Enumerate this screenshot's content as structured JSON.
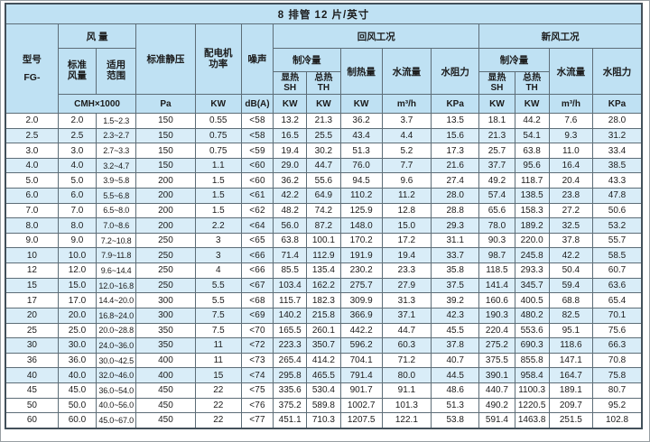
{
  "title": "8 排管  12 片/英寸",
  "header": {
    "model": [
      "型号",
      "FG-"
    ],
    "air_volume": "风 量",
    "std_air": [
      "标准",
      "风量"
    ],
    "range": [
      "适用",
      "范围"
    ],
    "static_pressure": "标准静压",
    "motor_power": [
      "配电机",
      "功率"
    ],
    "noise": "噪声",
    "return_air": "回风工况",
    "fresh_air": "新风工况",
    "cooling": "制冷量",
    "sensible": [
      "显热",
      "SH"
    ],
    "total": [
      "总热",
      "TH"
    ],
    "heating": "制热量",
    "water_flow": "水流量",
    "water_resistance": "水阻力"
  },
  "units": [
    "CMH×1000",
    "Pa",
    "KW",
    "dB(A)",
    "KW",
    "KW",
    "KW",
    "m³/h",
    "KPa",
    "KW",
    "KW",
    "m³/h",
    "KPa"
  ],
  "rows": [
    [
      "2.0",
      "2.0",
      "1.5~2.3",
      "150",
      "0.55",
      "<58",
      "13.2",
      "21.3",
      "36.2",
      "3.7",
      "13.5",
      "18.1",
      "44.2",
      "7.6",
      "28.0"
    ],
    [
      "2.5",
      "2.5",
      "2.3~2.7",
      "150",
      "0.75",
      "<58",
      "16.5",
      "25.5",
      "43.4",
      "4.4",
      "15.6",
      "21.3",
      "54.1",
      "9.3",
      "31.2"
    ],
    [
      "3.0",
      "3.0",
      "2.7~3.3",
      "150",
      "0.75",
      "<59",
      "19.4",
      "30.2",
      "51.3",
      "5.2",
      "17.3",
      "25.7",
      "63.8",
      "11.0",
      "33.4"
    ],
    [
      "4.0",
      "4.0",
      "3.2~4.7",
      "150",
      "1.1",
      "<60",
      "29.0",
      "44.7",
      "76.0",
      "7.7",
      "21.6",
      "37.7",
      "95.6",
      "16.4",
      "38.5"
    ],
    [
      "5.0",
      "5.0",
      "3.9~5.8",
      "200",
      "1.5",
      "<60",
      "36.2",
      "55.6",
      "94.5",
      "9.6",
      "27.4",
      "49.2",
      "118.7",
      "20.4",
      "43.3"
    ],
    [
      "6.0",
      "6.0",
      "5.5~6.8",
      "200",
      "1.5",
      "<61",
      "42.2",
      "64.9",
      "110.2",
      "11.2",
      "28.0",
      "57.4",
      "138.5",
      "23.8",
      "47.8"
    ],
    [
      "7.0",
      "7.0",
      "6.5~8.0",
      "200",
      "1.5",
      "<62",
      "48.2",
      "74.2",
      "125.9",
      "12.8",
      "28.8",
      "65.6",
      "158.3",
      "27.2",
      "50.6"
    ],
    [
      "8.0",
      "8.0",
      "7.0~8.6",
      "200",
      "2.2",
      "<64",
      "56.0",
      "87.2",
      "148.0",
      "15.0",
      "29.3",
      "78.0",
      "189.2",
      "32.5",
      "53.2"
    ],
    [
      "9.0",
      "9.0",
      "7.2~10.8",
      "250",
      "3",
      "<65",
      "63.8",
      "100.1",
      "170.2",
      "17.2",
      "31.1",
      "90.3",
      "220.0",
      "37.8",
      "55.7"
    ],
    [
      "10",
      "10.0",
      "7.9~11.8",
      "250",
      "3",
      "<66",
      "71.4",
      "112.9",
      "191.9",
      "19.4",
      "33.7",
      "98.7",
      "245.8",
      "42.2",
      "58.5"
    ],
    [
      "12",
      "12.0",
      "9.6~14.4",
      "250",
      "4",
      "<66",
      "85.5",
      "135.4",
      "230.2",
      "23.3",
      "35.8",
      "118.5",
      "293.3",
      "50.4",
      "60.7"
    ],
    [
      "15",
      "15.0",
      "12.0~16.8",
      "250",
      "5.5",
      "<67",
      "103.4",
      "162.2",
      "275.7",
      "27.9",
      "37.5",
      "141.4",
      "345.7",
      "59.4",
      "63.6"
    ],
    [
      "17",
      "17.0",
      "14.4~20.0",
      "300",
      "5.5",
      "<68",
      "115.7",
      "182.3",
      "309.9",
      "31.3",
      "39.2",
      "160.6",
      "400.5",
      "68.8",
      "65.4"
    ],
    [
      "20",
      "20.0",
      "16.8~24.0",
      "300",
      "7.5",
      "<69",
      "140.2",
      "215.8",
      "366.9",
      "37.1",
      "42.3",
      "190.3",
      "480.2",
      "82.5",
      "70.1"
    ],
    [
      "25",
      "25.0",
      "20.0~28.8",
      "350",
      "7.5",
      "<70",
      "165.5",
      "260.1",
      "442.2",
      "44.7",
      "45.5",
      "220.4",
      "553.6",
      "95.1",
      "75.6"
    ],
    [
      "30",
      "30.0",
      "24.0~36.0",
      "350",
      "11",
      "<72",
      "223.3",
      "350.7",
      "596.2",
      "60.3",
      "37.8",
      "275.2",
      "690.3",
      "118.6",
      "66.3"
    ],
    [
      "36",
      "36.0",
      "30.0~42.5",
      "400",
      "11",
      "<73",
      "265.4",
      "414.2",
      "704.1",
      "71.2",
      "40.7",
      "375.5",
      "855.8",
      "147.1",
      "70.8"
    ],
    [
      "40",
      "40.0",
      "32.0~46.0",
      "400",
      "15",
      "<74",
      "295.8",
      "465.5",
      "791.4",
      "80.0",
      "44.5",
      "390.1",
      "958.4",
      "164.7",
      "75.8"
    ],
    [
      "45",
      "45.0",
      "36.0~54.0",
      "450",
      "22",
      "<75",
      "335.6",
      "530.4",
      "901.7",
      "91.1",
      "48.6",
      "440.7",
      "1100.3",
      "189.1",
      "80.7"
    ],
    [
      "50",
      "50.0",
      "40.0~56.0",
      "450",
      "22",
      "<76",
      "375.2",
      "589.8",
      "1002.7",
      "101.3",
      "51.3",
      "490.2",
      "1220.5",
      "209.7",
      "95.2"
    ],
    [
      "60",
      "60.0",
      "45.0~67.0",
      "450",
      "22",
      "<77",
      "451.1",
      "710.3",
      "1207.5",
      "122.1",
      "53.8",
      "591.4",
      "1463.8",
      "251.5",
      "102.8"
    ]
  ],
  "colors": {
    "header_bg": "#bfe1f3",
    "stripe_bg": "#d9edf8",
    "grid_line": "#5d6d77",
    "outer_border": "#42505a",
    "text": "#1b1b1b"
  }
}
